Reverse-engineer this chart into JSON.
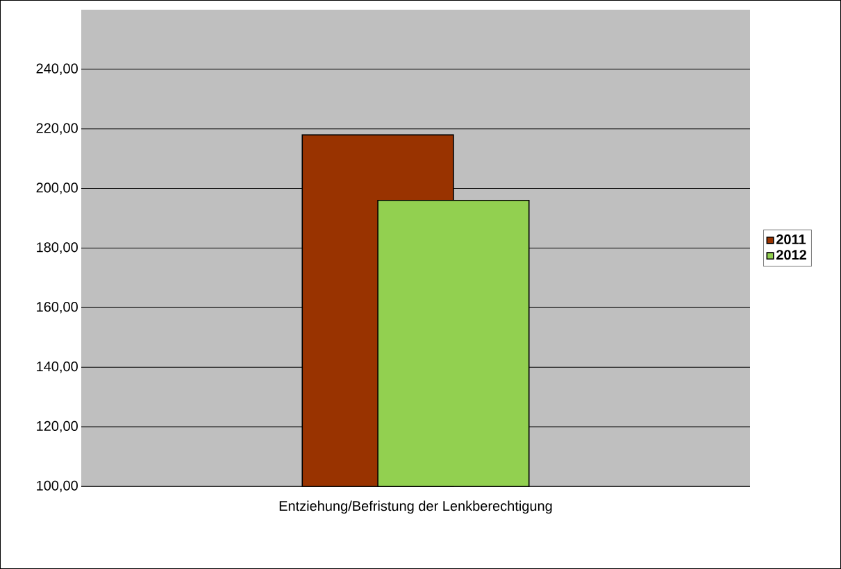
{
  "chart_data": {
    "type": "bar",
    "categories": [
      "Entziehung/Befristung der Lenkberechtigung"
    ],
    "series": [
      {
        "name": "2011",
        "color": "#993300",
        "values": [
          218
        ]
      },
      {
        "name": "2012",
        "color": "#92d050",
        "values": [
          196
        ]
      }
    ],
    "ylim": [
      100,
      260
    ],
    "yticks": [
      {
        "value": 100,
        "label": "100,00"
      },
      {
        "value": 120,
        "label": "120,00"
      },
      {
        "value": 140,
        "label": "140,00"
      },
      {
        "value": 160,
        "label": "160,00"
      },
      {
        "value": 180,
        "label": "180,00"
      },
      {
        "value": 200,
        "label": "200,00"
      },
      {
        "value": 220,
        "label": "220,00"
      },
      {
        "value": 240,
        "label": "240,00"
      }
    ],
    "grid": "y",
    "legend": "right"
  }
}
